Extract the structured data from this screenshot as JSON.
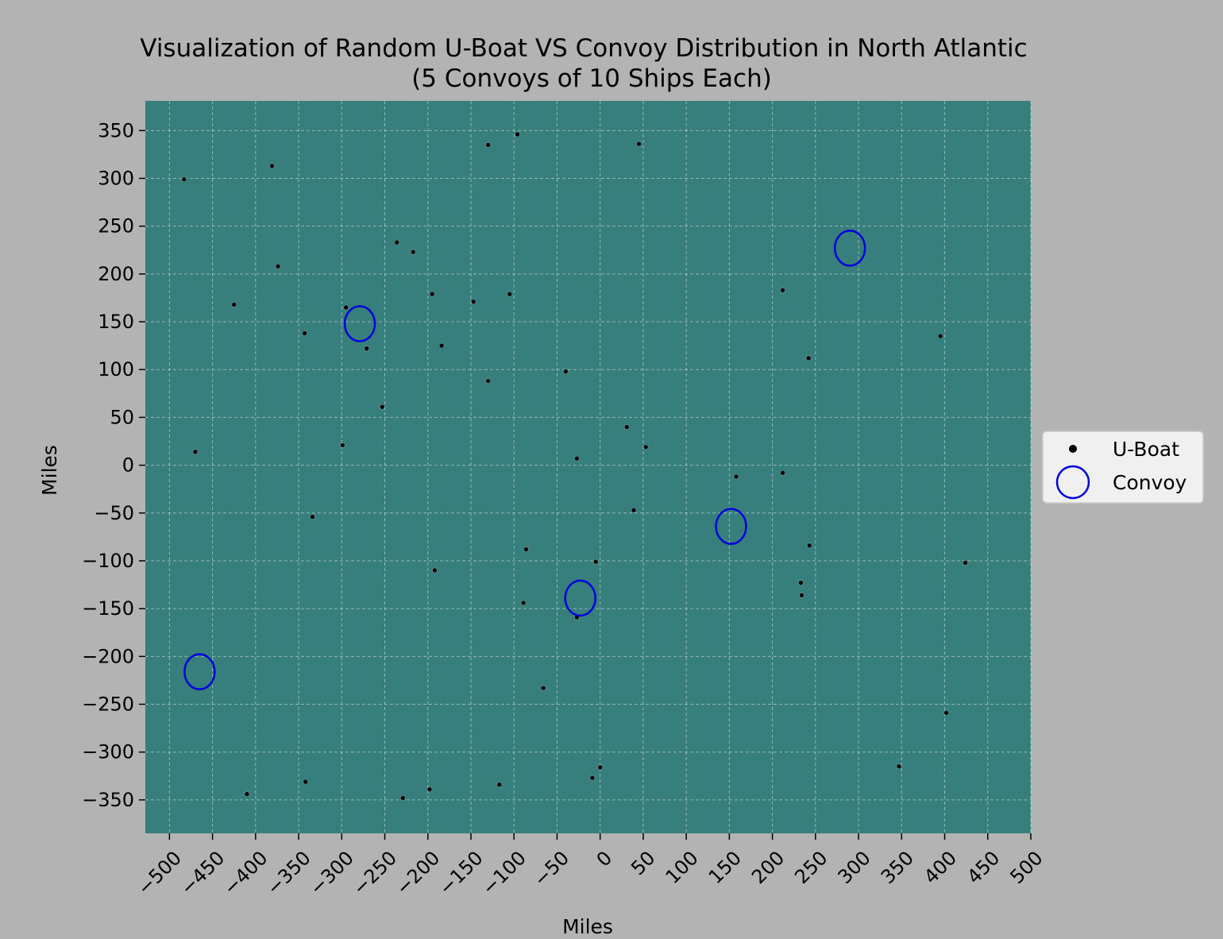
{
  "chart_data": {
    "type": "scatter",
    "title_line1": "Visualization of Random U-Boat VS Convoy Distribution in North Atlantic",
    "title_line2": "(5 Convoys of 10 Ships Each)",
    "xlabel": "Miles",
    "ylabel": "Miles",
    "xlim": [
      -528,
      500
    ],
    "ylim": [
      -385,
      381
    ],
    "xticks": [
      -500,
      -450,
      -400,
      -350,
      -300,
      -250,
      -200,
      -150,
      -100,
      -50,
      0,
      50,
      100,
      150,
      200,
      250,
      300,
      350,
      400,
      450,
      500
    ],
    "yticks": [
      -350,
      -300,
      -250,
      -200,
      -150,
      -100,
      -50,
      0,
      50,
      100,
      150,
      200,
      250,
      300,
      350
    ],
    "grid": true,
    "legend_position": "center-right outside",
    "colors": {
      "figure_background": "#b3b3b3",
      "plot_background": "#367f7c",
      "uboat": "#000000",
      "convoy": "#0000dd",
      "legend_background": "#f0f0f0"
    },
    "series": [
      {
        "name": "U-Boat",
        "marker": "dot",
        "points": [
          [
            -483,
            299
          ],
          [
            -381,
            313
          ],
          [
            -374,
            208
          ],
          [
            -425,
            168
          ],
          [
            -343,
            138
          ],
          [
            -295,
            165
          ],
          [
            -271,
            122
          ],
          [
            -236,
            233
          ],
          [
            -217,
            223
          ],
          [
            -195,
            179
          ],
          [
            -184,
            125
          ],
          [
            -147,
            171
          ],
          [
            -130,
            335
          ],
          [
            -130,
            88
          ],
          [
            -105,
            179
          ],
          [
            -96,
            346
          ],
          [
            -40,
            98
          ],
          [
            45,
            336
          ],
          [
            -253,
            61
          ],
          [
            -299,
            21
          ],
          [
            -470,
            14
          ],
          [
            -334,
            -54
          ],
          [
            -192,
            -110
          ],
          [
            -86,
            -88
          ],
          [
            -89,
            -144
          ],
          [
            -27,
            7
          ],
          [
            31,
            40
          ],
          [
            53,
            19
          ],
          [
            39,
            -47
          ],
          [
            -5,
            -101
          ],
          [
            -27,
            -159
          ],
          [
            -66,
            -233
          ],
          [
            -410,
            -344
          ],
          [
            -342,
            -331
          ],
          [
            -229,
            -348
          ],
          [
            -198,
            -339
          ],
          [
            -117,
            -334
          ],
          [
            -9,
            -327
          ],
          [
            0,
            -316
          ],
          [
            212,
            183
          ],
          [
            242,
            112
          ],
          [
            158,
            -12
          ],
          [
            212,
            -8
          ],
          [
            243,
            -84
          ],
          [
            233,
            -123
          ],
          [
            234,
            -136
          ],
          [
            395,
            135
          ],
          [
            424,
            -102
          ],
          [
            402,
            -259
          ],
          [
            347,
            -315
          ]
        ]
      },
      {
        "name": "Convoy",
        "marker": "ring",
        "points": [
          [
            290,
            227
          ],
          [
            -279,
            148
          ],
          [
            152,
            -64
          ],
          [
            -23,
            -139
          ],
          [
            -465,
            -216
          ]
        ]
      }
    ]
  }
}
